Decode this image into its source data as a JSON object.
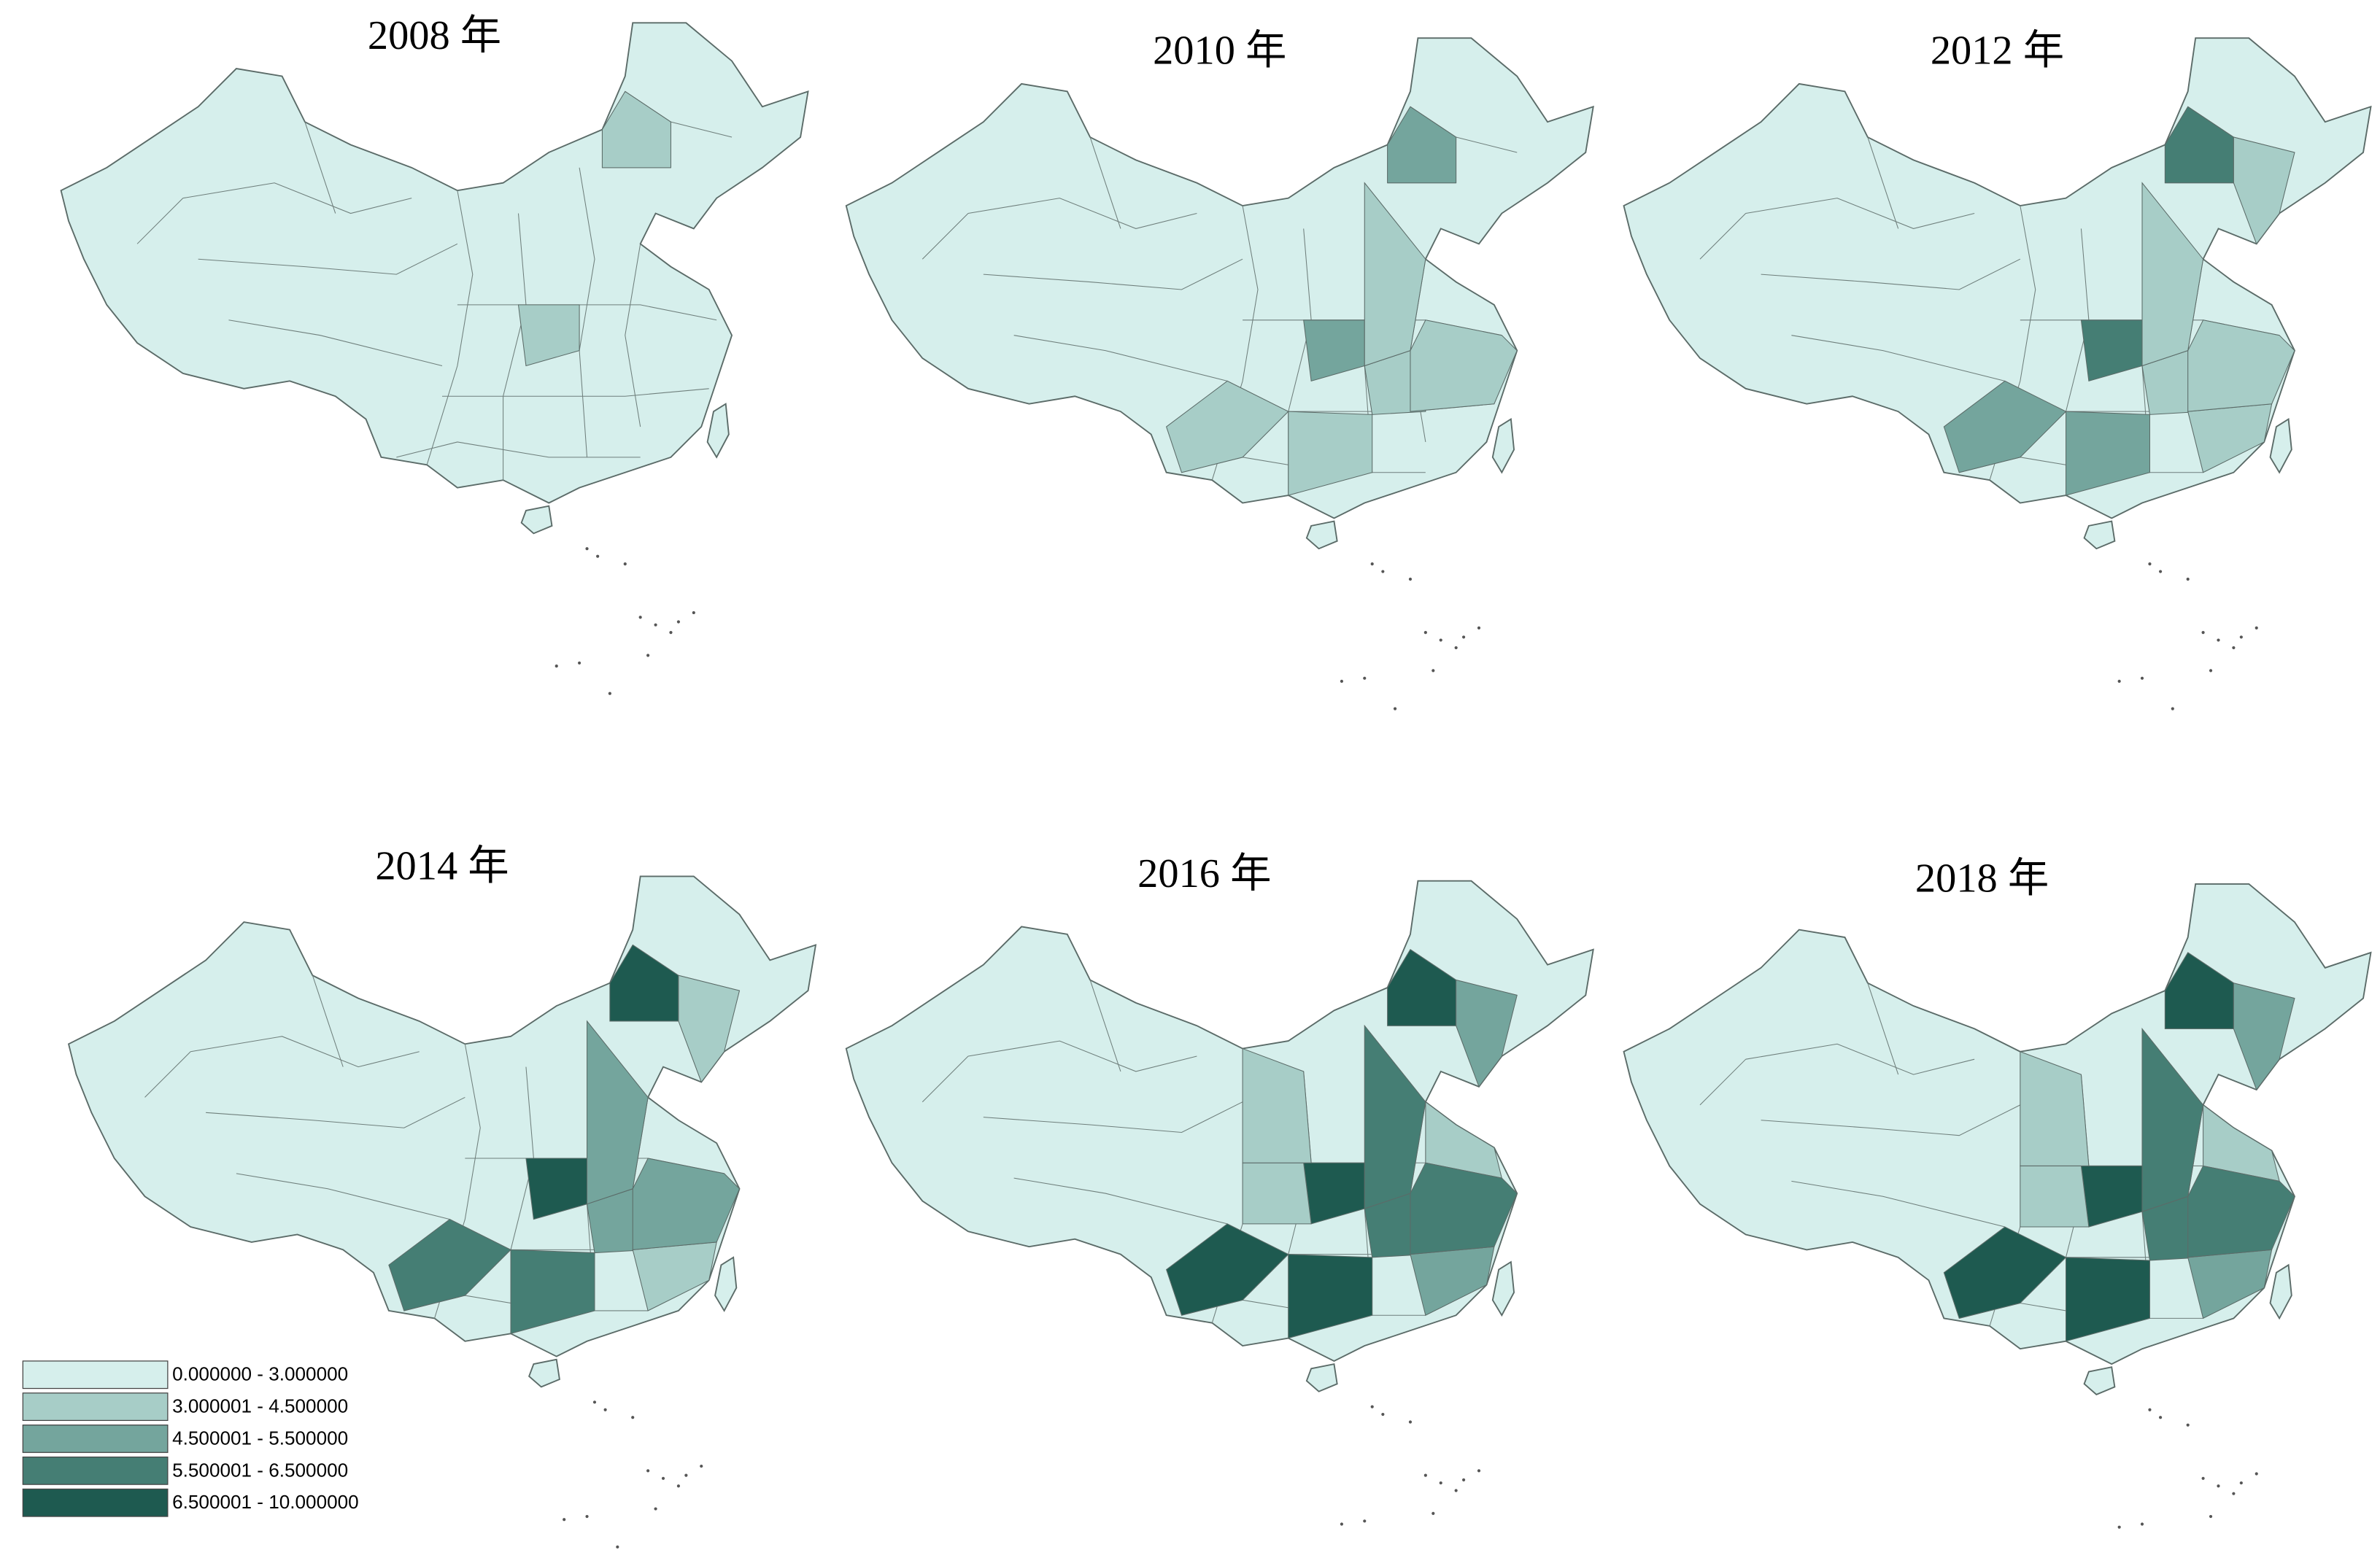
{
  "panels": [
    {
      "title": "2008 年"
    },
    {
      "title": "2010 年"
    },
    {
      "title": "2012 年"
    },
    {
      "title": "2014 年"
    },
    {
      "title": "2016 年"
    },
    {
      "title": "2018 年"
    }
  ],
  "legend": {
    "items": [
      {
        "label": "0.000000 - 3.000000",
        "color": "#d6efec"
      },
      {
        "label": "3.000001 - 4.500000",
        "color": "#a7cdc7"
      },
      {
        "label": "4.500001 - 5.500000",
        "color": "#74a59d"
      },
      {
        "label": "5.500001 - 6.500000",
        "color": "#457e74"
      },
      {
        "label": "6.500001 - 10.000000",
        "color": "#1e5a50"
      }
    ]
  }
}
